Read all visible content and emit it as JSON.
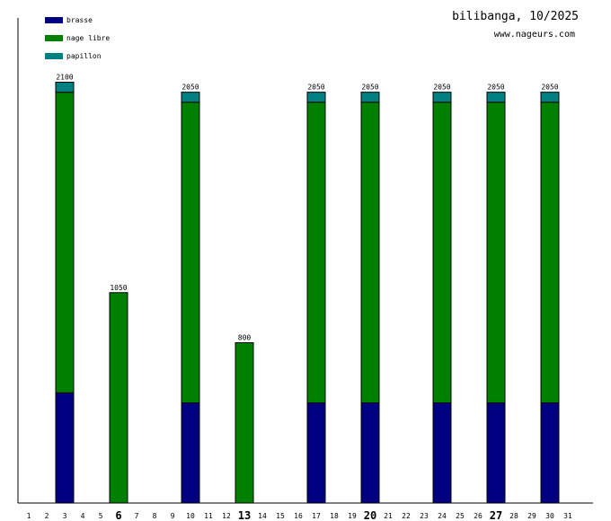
{
  "header": {
    "title": "bilibanga, 10/2025",
    "site": "www.nageurs.com"
  },
  "legend": [
    {
      "label": "brasse",
      "color": "#000080"
    },
    {
      "label": "nage libre",
      "color": "#008000"
    },
    {
      "label": "papillon",
      "color": "#008080"
    }
  ],
  "chart_data": {
    "type": "bar",
    "stacked": true,
    "title": "bilibanga, 10/2025",
    "x": [
      1,
      2,
      3,
      4,
      5,
      6,
      7,
      8,
      9,
      10,
      11,
      12,
      13,
      14,
      15,
      16,
      17,
      18,
      19,
      20,
      21,
      22,
      23,
      24,
      25,
      26,
      27,
      28,
      29,
      30,
      31
    ],
    "bold_ticks": [
      6,
      13,
      20,
      27
    ],
    "series": [
      {
        "name": "brasse",
        "color": "#000080",
        "values": {
          "3": 550,
          "10": 500,
          "17": 500,
          "20": 500,
          "24": 500,
          "27": 500,
          "30": 500
        }
      },
      {
        "name": "nage libre",
        "color": "#008000",
        "values": {
          "3": 1500,
          "6": 1050,
          "10": 1500,
          "13": 800,
          "17": 1500,
          "20": 1500,
          "24": 1500,
          "27": 1500,
          "30": 1500
        }
      },
      {
        "name": "papillon",
        "color": "#008080",
        "values": {
          "3": 50,
          "10": 50,
          "17": 50,
          "20": 50,
          "24": 50,
          "27": 50,
          "30": 50
        }
      }
    ],
    "totals": {
      "3": "2100",
      "6": "1050",
      "10": "2050",
      "13": "800",
      "17": "2050",
      "20": "2050",
      "24": "2050",
      "27": "2050",
      "30": "2050"
    },
    "ylim": [
      0,
      2100
    ],
    "grid": false,
    "legend_position": "top-left"
  }
}
